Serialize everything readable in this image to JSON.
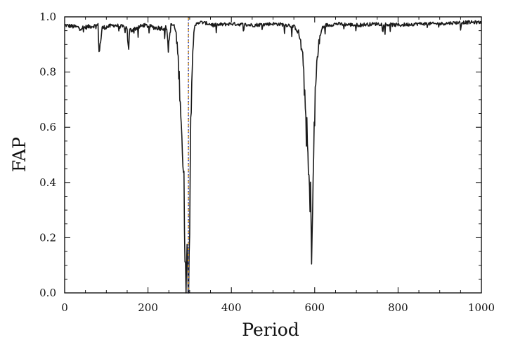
{
  "chart_data": {
    "type": "line",
    "title": "",
    "xlabel": "Period",
    "ylabel": "FAP",
    "xlim": [
      0,
      1000
    ],
    "ylim": [
      0,
      1.0
    ],
    "x_ticks": [
      0,
      200,
      400,
      600,
      800,
      1000
    ],
    "y_ticks": [
      0.0,
      0.2,
      0.4,
      0.6,
      0.8,
      1.0
    ],
    "x_tick_labels": [
      "0",
      "200",
      "400",
      "600",
      "800",
      "1000"
    ],
    "y_tick_labels": [
      "0.0",
      "0.2",
      "0.4",
      "0.6",
      "0.8",
      "1.0"
    ],
    "grid": false,
    "minor_ticks": true,
    "series": [
      {
        "color": "#1a1a1a",
        "style": "solid",
        "baseline": 0.975,
        "x": [
          0,
          40,
          80,
          83,
          90,
          120,
          150,
          153,
          156,
          190,
          220,
          245,
          248,
          255,
          262,
          266,
          270,
          274,
          278,
          282,
          285,
          288,
          291,
          293,
          295,
          297,
          299,
          301,
          303,
          305,
          308,
          312,
          318,
          330,
          360,
          400,
          450,
          500,
          540,
          555,
          562,
          567,
          571,
          574,
          577,
          580,
          583,
          586,
          589,
          591,
          593,
          595,
          597,
          599,
          601,
          604,
          607,
          612,
          618,
          625,
          635,
          650,
          700,
          750,
          800,
          850,
          900,
          950,
          1000
        ],
        "y": [
          0.97,
          0.96,
          0.97,
          0.87,
          0.96,
          0.97,
          0.96,
          0.87,
          0.95,
          0.97,
          0.96,
          0.96,
          0.88,
          0.97,
          0.97,
          0.95,
          0.9,
          0.8,
          0.7,
          0.55,
          0.4,
          0.25,
          0.15,
          0.08,
          0.05,
          0.06,
          0.2,
          0.42,
          0.65,
          0.8,
          0.9,
          0.96,
          0.98,
          0.98,
          0.97,
          0.975,
          0.97,
          0.975,
          0.97,
          0.96,
          0.94,
          0.9,
          0.85,
          0.78,
          0.7,
          0.6,
          0.5,
          0.4,
          0.3,
          0.29,
          0.21,
          0.3,
          0.45,
          0.58,
          0.7,
          0.8,
          0.87,
          0.92,
          0.96,
          0.97,
          0.97,
          0.975,
          0.97,
          0.975,
          0.97,
          0.975,
          0.975,
          0.98,
          0.98
        ]
      }
    ],
    "reference_lines": [
      {
        "x": 297,
        "color": "#e8a317",
        "style": "dashed"
      },
      {
        "x": 297,
        "color": "#3f4fbf",
        "style": "dotted"
      }
    ]
  }
}
